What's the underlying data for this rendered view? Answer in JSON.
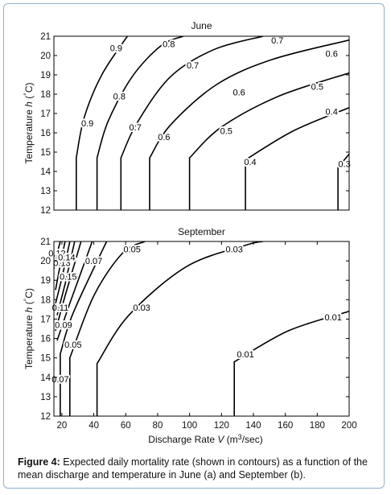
{
  "caption": {
    "label": "Figure 4:",
    "text": "Expected daily mortality rate (shown in contours) as a function of the mean discharge and temperature in June (a) and September (b)."
  },
  "colors": {
    "frame": "#8fb0cf",
    "line": "#000000",
    "axis": "#000000"
  },
  "chart_data": [
    {
      "type": "contour",
      "title": "June",
      "ylabel": "Temperature h (°C)",
      "xlabel": "",
      "xlim": [
        15,
        200
      ],
      "ylim": [
        12,
        21
      ],
      "xticks": [],
      "yticks": [
        12,
        13,
        14,
        15,
        16,
        17,
        18,
        19,
        20,
        21
      ],
      "contours": [
        {
          "level": "0.9",
          "points": [
            [
              29,
              12
            ],
            [
              29,
              14.7
            ],
            [
              34,
              16.8
            ],
            [
              45,
              19
            ],
            [
              61,
              21
            ]
          ],
          "labels": [
            {
              "text": "0.9",
              "x": 36,
              "y": 16.5
            },
            {
              "text": "0.9",
              "x": 54,
              "y": 20.4
            }
          ]
        },
        {
          "level": "0.8",
          "points": [
            [
              42,
              12
            ],
            [
              42,
              14.7
            ],
            [
              49,
              16.6
            ],
            [
              64,
              18.9
            ],
            [
              82,
              20.5
            ],
            [
              96,
              21
            ]
          ],
          "labels": [
            {
              "text": "0.8",
              "x": 56,
              "y": 17.9
            },
            {
              "text": "0.8",
              "x": 87,
              "y": 20.6
            }
          ]
        },
        {
          "level": "0.7",
          "points": [
            [
              57,
              12
            ],
            [
              57,
              14.7
            ],
            [
              67,
              16.5
            ],
            [
              88,
              18.9
            ],
            [
              115,
              20.3
            ],
            [
              146,
              21
            ]
          ],
          "labels": [
            {
              "text": "0.7",
              "x": 66,
              "y": 16.3
            },
            {
              "text": "0.7",
              "x": 102,
              "y": 19.5
            },
            {
              "text": "0.7",
              "x": 155,
              "y": 20.8
            }
          ]
        },
        {
          "level": "0.6",
          "points": [
            [
              75,
              12
            ],
            [
              75,
              14.7
            ],
            [
              88,
              16.4
            ],
            [
              117,
              18.5
            ],
            [
              152,
              19.8
            ],
            [
              200,
              20.8
            ]
          ],
          "labels": [
            {
              "text": "0.6",
              "x": 84,
              "y": 15.8
            },
            {
              "text": "0.6",
              "x": 131,
              "y": 18.1
            },
            {
              "text": "0.6",
              "x": 189,
              "y": 20.1
            }
          ]
        },
        {
          "level": "0.5",
          "points": [
            [
              100,
              12
            ],
            [
              100,
              14.7
            ],
            [
              120,
              16.3
            ],
            [
              156,
              17.9
            ],
            [
              200,
              19.1
            ]
          ],
          "labels": [
            {
              "text": "0.5",
              "x": 123,
              "y": 16.1
            },
            {
              "text": "0.5",
              "x": 180,
              "y": 18.4
            }
          ]
        },
        {
          "level": "0.4",
          "points": [
            [
              135,
              12
            ],
            [
              135,
              14.6
            ],
            [
              165,
              16.1
            ],
            [
              200,
              17.3
            ]
          ],
          "labels": [
            {
              "text": "0.4",
              "x": 138,
              "y": 14.5
            },
            {
              "text": "0.4",
              "x": 189,
              "y": 17.1
            }
          ]
        },
        {
          "level": "0.3",
          "points": [
            [
              193,
              12
            ],
            [
              193,
              14.2
            ],
            [
              200,
              14.9
            ]
          ],
          "labels": [
            {
              "text": "0.3",
              "x": 197,
              "y": 14.4
            }
          ]
        }
      ]
    },
    {
      "type": "contour",
      "title": "September",
      "ylabel": "Temperature h (°C)",
      "xlabel": "Discharge Rate V (m3/sec)",
      "xlim": [
        15,
        200
      ],
      "ylim": [
        12,
        21
      ],
      "xticks": [
        20,
        40,
        60,
        80,
        100,
        120,
        140,
        160,
        180,
        200
      ],
      "yticks": [
        12,
        13,
        14,
        15,
        16,
        17,
        18,
        19,
        20,
        21
      ],
      "contours": [
        {
          "level": "0.12",
          "points": [
            [
              15,
              19.6
            ],
            [
              17,
              20.4
            ],
            [
              19,
              21
            ]
          ],
          "labels": [
            {
              "text": "0.12",
              "x": 17,
              "y": 20.4
            }
          ]
        },
        {
          "level": "0.13",
          "points": [
            [
              16,
              18.5
            ],
            [
              19,
              19.8
            ],
            [
              22,
              21
            ]
          ],
          "labels": [
            {
              "text": "0.13",
              "x": 20,
              "y": 19.9
            }
          ]
        },
        {
          "level": "0.14",
          "points": [
            [
              16,
              17.8
            ],
            [
              20,
              19.1
            ],
            [
              25,
              21
            ]
          ],
          "labels": [
            {
              "text": "0.14",
              "x": 23,
              "y": 20.2
            }
          ]
        },
        {
          "level": "0.15",
          "points": [
            [
              17,
              17.2
            ],
            [
              22,
              18.8
            ],
            [
              28,
              21
            ]
          ],
          "labels": [
            {
              "text": "0.15",
              "x": 24,
              "y": 19.2
            }
          ]
        },
        {
          "level": "0.11",
          "points": [
            [
              16,
              16.4
            ],
            [
              22,
              18.2
            ],
            [
              32,
              21
            ]
          ],
          "labels": [
            {
              "text": "0.11",
              "x": 19,
              "y": 17.6
            }
          ]
        },
        {
          "level": "0.09",
          "points": [
            [
              17,
              15.9
            ],
            [
              24,
              17.6
            ],
            [
              39,
              21
            ]
          ],
          "labels": [
            {
              "text": "0.09",
              "x": 21,
              "y": 16.7
            }
          ]
        },
        {
          "level": "0.07",
          "points": [
            [
              19,
              12
            ],
            [
              19,
              15.2
            ],
            [
              27,
              17.3
            ],
            [
              48,
              21
            ]
          ],
          "labels": [
            {
              "text": "0.07",
              "x": 19,
              "y": 13.9
            },
            {
              "text": "0.07",
              "x": 40,
              "y": 20.0
            }
          ]
        },
        {
          "level": "0.05",
          "points": [
            [
              25,
              12
            ],
            [
              25,
              15
            ],
            [
              40,
              18.2
            ],
            [
              58,
              20.4
            ],
            [
              72,
              21
            ]
          ],
          "labels": [
            {
              "text": "0.05",
              "x": 27,
              "y": 15.7
            },
            {
              "text": "0.05",
              "x": 64,
              "y": 20.6
            }
          ]
        },
        {
          "level": "0.03",
          "points": [
            [
              42,
              12
            ],
            [
              42,
              14.7
            ],
            [
              62,
              17.2
            ],
            [
              98,
              19.7
            ],
            [
              135,
              20.8
            ],
            [
              146,
              21
            ]
          ],
          "labels": [
            {
              "text": "0.03",
              "x": 70,
              "y": 17.6
            },
            {
              "text": "0.03",
              "x": 128,
              "y": 20.6
            }
          ]
        },
        {
          "level": "0.01",
          "points": [
            [
              128,
              12
            ],
            [
              128,
              14.8
            ],
            [
              162,
              16.4
            ],
            [
              200,
              17.4
            ]
          ],
          "labels": [
            {
              "text": "0.01",
              "x": 135,
              "y": 15.2
            },
            {
              "text": "0.01",
              "x": 190,
              "y": 17.1
            }
          ]
        }
      ]
    }
  ]
}
